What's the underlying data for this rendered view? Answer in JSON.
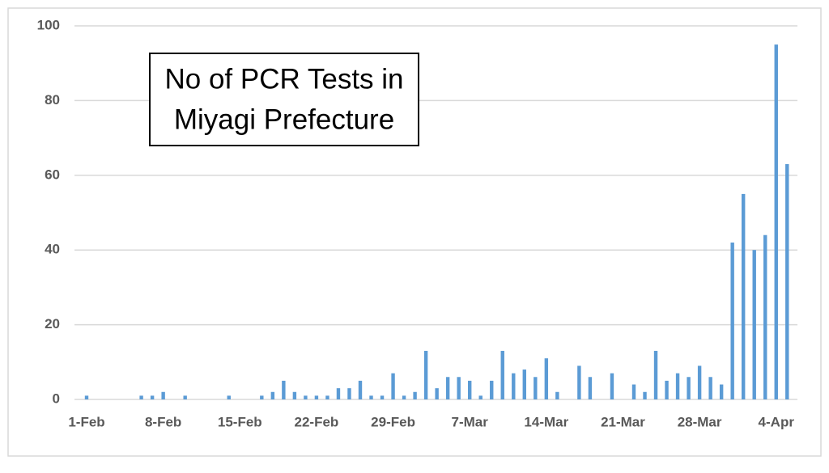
{
  "chart_data": {
    "type": "bar",
    "title_lines": [
      "No of PCR Tests in",
      "Miyagi Prefecture"
    ],
    "categories": [
      "1-Feb",
      null,
      null,
      null,
      null,
      null,
      null,
      "8-Feb",
      null,
      null,
      null,
      null,
      null,
      null,
      "15-Feb",
      null,
      null,
      null,
      null,
      null,
      null,
      "22-Feb",
      null,
      null,
      null,
      null,
      null,
      null,
      "29-Feb",
      null,
      null,
      null,
      null,
      null,
      null,
      "7-Mar",
      null,
      null,
      null,
      null,
      null,
      null,
      "14-Mar",
      null,
      null,
      null,
      null,
      null,
      null,
      "21-Mar",
      null,
      null,
      null,
      null,
      null,
      null,
      "28-Mar",
      null,
      null,
      null,
      null,
      null,
      null,
      "4-Apr",
      null
    ],
    "values": [
      1,
      0,
      0,
      0,
      0,
      1,
      1,
      2,
      0,
      1,
      0,
      0,
      0,
      1,
      0,
      0,
      1,
      2,
      5,
      2,
      1,
      1,
      1,
      3,
      3,
      5,
      1,
      1,
      7,
      1,
      2,
      13,
      3,
      6,
      6,
      5,
      1,
      5,
      13,
      7,
      8,
      6,
      11,
      2,
      0,
      9,
      6,
      0,
      7,
      0,
      4,
      2,
      13,
      5,
      7,
      6,
      9,
      6,
      4,
      42,
      55,
      40,
      44,
      95,
      63
    ],
    "color": "#5b9bd5",
    "ylim": [
      0,
      100
    ],
    "yticks": [
      0,
      20,
      40,
      60,
      80,
      100
    ],
    "grid": true
  }
}
